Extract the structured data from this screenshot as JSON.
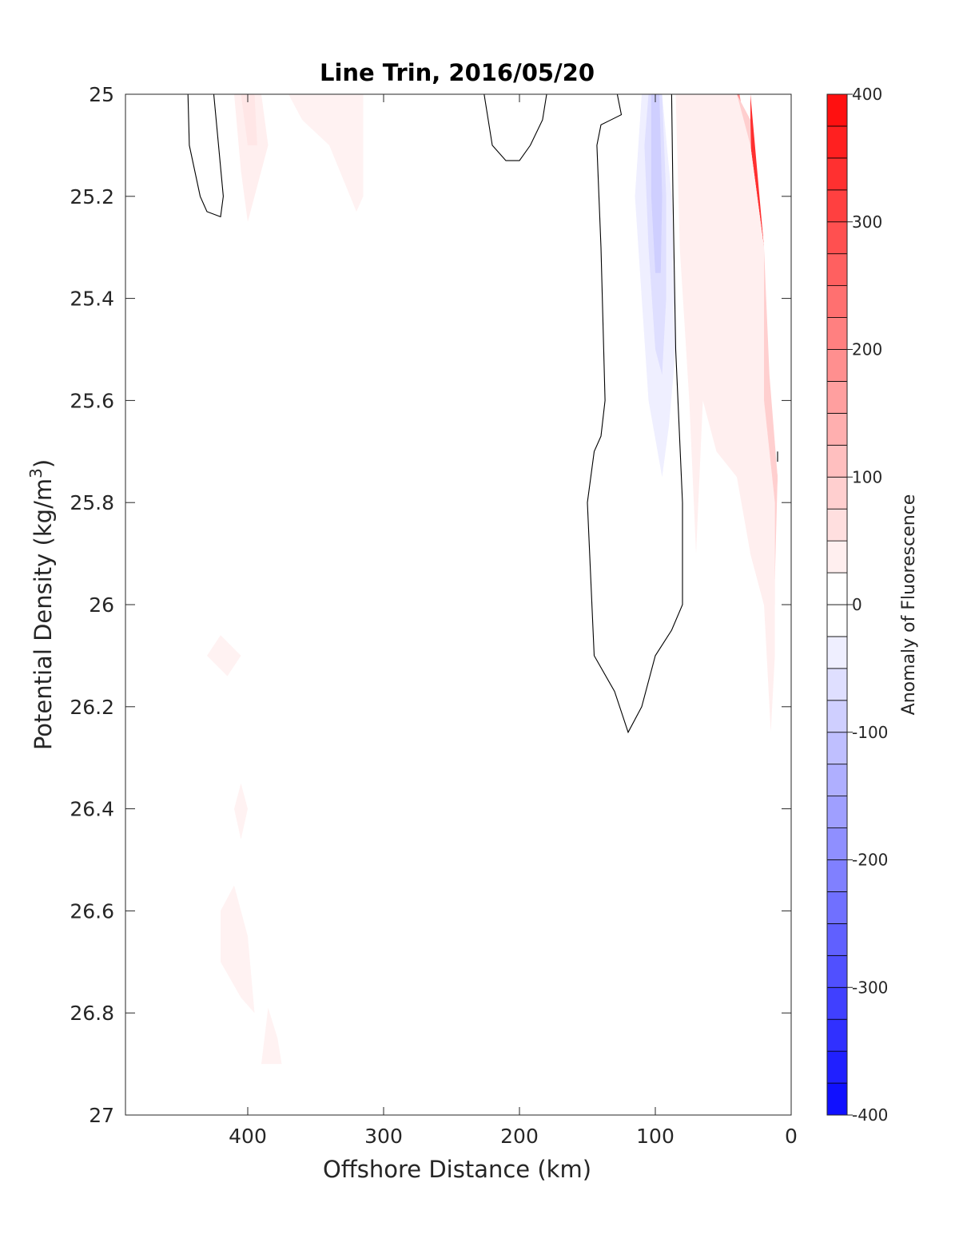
{
  "chart_data": {
    "type": "heatmap",
    "title": "Line Trin, 2016/05/20",
    "xlabel": "Offshore Distance (km)",
    "ylabel_base": "Potential Density (kg/m",
    "ylabel_sup": "3",
    "ylabel_close": ")",
    "xlim": [
      490,
      0
    ],
    "ylim": [
      25,
      27
    ],
    "x_reversed": true,
    "y_reversed": true,
    "x_ticks": [
      400,
      300,
      200,
      100,
      0
    ],
    "x_tick_labels": [
      "400",
      "300",
      "200",
      "100",
      "0"
    ],
    "y_ticks": [
      25,
      25.2,
      25.4,
      25.6,
      25.8,
      26,
      26.2,
      26.4,
      26.6,
      26.8,
      27
    ],
    "y_tick_labels": [
      "25",
      "25.2",
      "25.4",
      "25.6",
      "25.8",
      "26",
      "26.2",
      "26.4",
      "26.6",
      "26.8",
      "27"
    ],
    "colorbar": {
      "label": "Anomaly of Fluorescence",
      "range": [
        -400,
        400
      ],
      "step": 25,
      "ticks": [
        400,
        300,
        200,
        100,
        0,
        -100,
        -200,
        -300,
        -400
      ],
      "tick_labels": [
        "400",
        "300",
        "200",
        "100",
        "0",
        "-100",
        "-200",
        "-300",
        "-400"
      ],
      "positive_color": "#ff0000",
      "negative_color": "#0000ff",
      "zero_color": "#ffffff"
    },
    "regions": [
      {
        "level": 325,
        "polygon": [
          [
            30,
            25.0
          ],
          [
            30,
            25.1
          ],
          [
            20,
            25.3
          ],
          [
            20,
            25.6
          ],
          [
            15,
            25.75
          ],
          [
            20,
            25.6
          ],
          [
            20,
            25.3
          ]
        ]
      },
      {
        "level": 275,
        "polygon": [
          [
            40,
            25.0
          ],
          [
            30,
            25.1
          ],
          [
            28,
            25.3
          ],
          [
            22,
            25.6
          ],
          [
            16,
            25.75
          ],
          [
            20,
            25.45
          ],
          [
            25,
            25.2
          ]
        ]
      },
      {
        "level": 225,
        "polygon": [
          [
            45,
            25.0
          ],
          [
            35,
            25.1
          ],
          [
            32,
            25.3
          ],
          [
            28,
            25.6
          ],
          [
            18,
            25.8
          ],
          [
            20,
            25.6
          ],
          [
            25,
            25.3
          ],
          [
            30,
            25.1
          ]
        ]
      },
      {
        "level": 175,
        "polygon": [
          [
            50,
            25.0
          ],
          [
            38,
            25.0
          ],
          [
            32,
            25.1
          ],
          [
            30,
            25.25
          ],
          [
            28,
            25.55
          ],
          [
            20,
            25.7
          ],
          [
            16,
            25.85
          ],
          [
            22,
            25.6
          ],
          [
            26,
            25.35
          ]
        ]
      },
      {
        "level": 125,
        "polygon": [
          [
            50,
            25.0
          ],
          [
            40,
            25.0
          ],
          [
            30,
            25.1
          ],
          [
            30,
            25.3
          ],
          [
            20,
            25.6
          ],
          [
            13,
            25.9
          ],
          [
            10,
            25.75
          ],
          [
            18,
            25.55
          ],
          [
            22,
            25.3
          ]
        ]
      },
      {
        "level": 75,
        "polygon": [
          [
            60,
            25.0
          ],
          [
            40,
            25.0
          ],
          [
            30,
            25.05
          ],
          [
            28,
            25.3
          ],
          [
            22,
            25.55
          ],
          [
            16,
            25.95
          ],
          [
            12,
            25.95
          ],
          [
            10,
            25.75
          ],
          [
            16,
            25.55
          ],
          [
            20,
            25.3
          ]
        ]
      },
      {
        "level": 50,
        "polygon": [
          [
            80,
            25.0
          ],
          [
            40,
            25.0
          ],
          [
            30,
            25.1
          ],
          [
            20,
            25.3
          ],
          [
            20,
            25.6
          ],
          [
            12,
            25.8
          ],
          [
            12,
            26.0
          ],
          [
            20,
            26.0
          ],
          [
            30,
            25.9
          ],
          [
            40,
            25.7
          ],
          [
            55,
            25.6
          ],
          [
            70,
            25.4
          ],
          [
            75,
            25.2
          ]
        ]
      },
      {
        "level": 40,
        "polygon": [
          [
            80,
            25.0
          ],
          [
            70,
            25.0
          ],
          [
            60,
            25.1
          ],
          [
            55,
            25.4
          ],
          [
            70,
            25.5
          ],
          [
            75,
            25.3
          ]
        ]
      },
      {
        "level": 25,
        "polygon": [
          [
            85,
            25.0
          ],
          [
            40,
            25.0
          ],
          [
            30,
            25.1
          ],
          [
            20,
            25.3
          ],
          [
            20,
            25.6
          ],
          [
            12,
            25.8
          ],
          [
            12,
            26.1
          ],
          [
            15,
            26.25
          ],
          [
            20,
            26.0
          ],
          [
            30,
            25.9
          ],
          [
            40,
            25.75
          ],
          [
            55,
            25.7
          ],
          [
            65,
            25.6
          ],
          [
            70,
            25.9
          ],
          [
            75,
            25.6
          ],
          [
            82,
            25.3
          ]
        ]
      },
      {
        "level": 25,
        "polygon": [
          [
            410,
            25.0
          ],
          [
            390,
            25.0
          ],
          [
            385,
            25.1
          ],
          [
            395,
            25.2
          ],
          [
            400,
            25.25
          ],
          [
            405,
            25.15
          ]
        ]
      },
      {
        "level": 40,
        "polygon": [
          [
            405,
            25.0
          ],
          [
            395,
            25.0
          ],
          [
            393,
            25.1
          ],
          [
            400,
            25.1
          ]
        ]
      },
      {
        "level": 20,
        "polygon": [
          [
            370,
            25.0
          ],
          [
            315,
            25.0
          ],
          [
            315,
            25.2
          ],
          [
            320,
            25.23
          ],
          [
            340,
            25.1
          ],
          [
            360,
            25.05
          ]
        ]
      },
      {
        "level": 20,
        "polygon": [
          [
            420,
            26.06
          ],
          [
            405,
            26.1
          ],
          [
            415,
            26.14
          ],
          [
            430,
            26.1
          ]
        ]
      },
      {
        "level": 20,
        "polygon": [
          [
            405,
            26.35
          ],
          [
            400,
            26.4
          ],
          [
            405,
            26.46
          ],
          [
            410,
            26.4
          ]
        ]
      },
      {
        "level": 20,
        "polygon": [
          [
            410,
            26.55
          ],
          [
            400,
            26.65
          ],
          [
            395,
            26.8
          ],
          [
            405,
            26.77
          ],
          [
            420,
            26.7
          ],
          [
            420,
            26.6
          ]
        ]
      },
      {
        "level": 20,
        "polygon": [
          [
            385,
            26.79
          ],
          [
            378,
            26.85
          ],
          [
            375,
            26.9
          ],
          [
            390,
            26.9
          ]
        ]
      },
      {
        "level": -25,
        "polygon": [
          [
            110,
            25.0
          ],
          [
            95,
            25.0
          ],
          [
            88,
            25.2
          ],
          [
            85,
            25.5
          ],
          [
            90,
            25.65
          ],
          [
            95,
            25.75
          ],
          [
            105,
            25.6
          ],
          [
            110,
            25.4
          ],
          [
            115,
            25.2
          ]
        ]
      },
      {
        "level": -50,
        "polygon": [
          [
            105,
            25.0
          ],
          [
            95,
            25.0
          ],
          [
            92,
            25.2
          ],
          [
            92,
            25.4
          ],
          [
            95,
            25.55
          ],
          [
            100,
            25.5
          ],
          [
            105,
            25.3
          ],
          [
            108,
            25.1
          ]
        ]
      },
      {
        "level": -75,
        "polygon": [
          [
            103,
            25.0
          ],
          [
            97,
            25.0
          ],
          [
            95,
            25.2
          ],
          [
            96,
            25.35
          ],
          [
            100,
            25.35
          ],
          [
            103,
            25.2
          ]
        ]
      }
    ],
    "contours_zero": [
      [
        [
          444,
          25.0
        ],
        [
          443,
          25.1
        ],
        [
          435,
          25.2
        ],
        [
          430,
          25.23
        ],
        [
          420,
          25.24
        ],
        [
          418,
          25.2
        ],
        [
          425,
          25.0
        ]
      ],
      [
        [
          226,
          25.0
        ],
        [
          220,
          25.1
        ],
        [
          210,
          25.13
        ],
        [
          200,
          25.13
        ],
        [
          192,
          25.1
        ],
        [
          183,
          25.05
        ],
        [
          180,
          25.0
        ]
      ],
      [
        [
          128,
          25.0
        ],
        [
          125,
          25.04
        ],
        [
          140,
          25.06
        ],
        [
          143,
          25.1
        ],
        [
          140,
          25.3
        ],
        [
          137,
          25.6
        ],
        [
          140,
          25.67
        ],
        [
          145,
          25.7
        ],
        [
          150,
          25.8
        ],
        [
          145,
          26.1
        ],
        [
          130,
          26.17
        ],
        [
          120,
          26.25
        ],
        [
          110,
          26.2
        ],
        [
          100,
          26.1
        ],
        [
          88,
          26.05
        ],
        [
          80,
          26.0
        ],
        [
          80,
          25.8
        ],
        [
          85,
          25.5
        ],
        [
          87,
          25.2
        ],
        [
          88,
          25.0
        ]
      ],
      [
        [
          10,
          25.7
        ],
        [
          10,
          25.72
        ]
      ]
    ]
  }
}
